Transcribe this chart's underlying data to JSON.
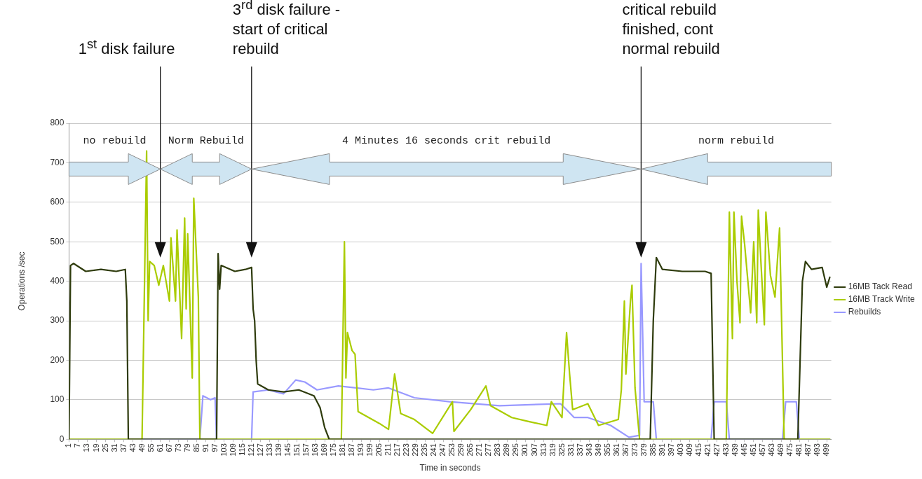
{
  "chart_data": {
    "type": "line",
    "xlabel": "Time in seconds",
    "ylabel": "Operations /sec",
    "xlim": [
      1,
      502
    ],
    "xticks": [
      1,
      7,
      13,
      19,
      25,
      31,
      37,
      43,
      49,
      55,
      61,
      67,
      73,
      79,
      85,
      91,
      97,
      103,
      109,
      115,
      121,
      127,
      133,
      139,
      145,
      151,
      157,
      163,
      169,
      175,
      181,
      187,
      193,
      199,
      205,
      211,
      217,
      223,
      229,
      235,
      241,
      247,
      253,
      259,
      265,
      271,
      277,
      283,
      289,
      295,
      301,
      307,
      313,
      319,
      325,
      331,
      337,
      343,
      349,
      355,
      361,
      367,
      373,
      379,
      385,
      391,
      397,
      403,
      409,
      415,
      421,
      427,
      433,
      439,
      445,
      451,
      457,
      463,
      469,
      475,
      481,
      487,
      493,
      499
    ],
    "ylim": [
      0,
      800
    ],
    "yticks": [
      0,
      100,
      200,
      300,
      400,
      500,
      600,
      700,
      800
    ],
    "grid": "y",
    "legend": "right",
    "marker": "none",
    "line_style": "solid",
    "series": [
      {
        "name": "16MB Tack Read",
        "color": "#2e3b0c",
        "x": [
          1,
          2,
          4,
          12,
          22,
          32,
          38,
          39,
          40,
          98,
          99,
          100,
          101,
          110,
          117,
          121,
          122,
          123,
          124,
          125,
          132,
          142,
          152,
          162,
          166,
          169,
          172,
          383,
          385,
          387,
          391,
          404,
          419,
          423,
          425,
          480,
          483,
          485,
          489,
          496,
          499,
          501
        ],
        "values": [
          0,
          440,
          445,
          425,
          430,
          425,
          430,
          350,
          0,
          0,
          470,
          380,
          440,
          425,
          430,
          435,
          330,
          300,
          200,
          140,
          125,
          120,
          125,
          110,
          80,
          30,
          0,
          0,
          300,
          460,
          430,
          425,
          425,
          420,
          0,
          0,
          400,
          450,
          430,
          435,
          385,
          410
        ]
      },
      {
        "name": "16MB Track Write",
        "color": "#aacc00",
        "x": [
          1,
          49,
          52,
          53,
          54,
          57,
          60,
          63,
          67,
          68,
          71,
          72,
          75,
          77,
          78,
          79,
          82,
          83,
          86,
          87,
          180,
          182,
          183,
          184,
          187,
          189,
          191,
          198,
          205,
          211,
          215,
          219,
          228,
          240,
          253,
          254,
          265,
          275,
          278,
          292,
          303,
          315,
          318,
          325,
          328,
          330,
          332,
          342,
          349,
          362,
          364,
          366,
          367,
          370,
          371,
          373,
          376,
          433,
          435,
          437,
          438,
          440,
          442,
          443,
          445,
          449,
          451,
          453,
          454,
          456,
          458,
          459,
          462,
          465,
          468,
          469,
          471,
          501
        ],
        "values": [
          0,
          0,
          730,
          300,
          450,
          440,
          390,
          440,
          350,
          510,
          350,
          530,
          255,
          560,
          330,
          520,
          155,
          610,
          360,
          0,
          0,
          500,
          155,
          270,
          225,
          215,
          70,
          55,
          40,
          25,
          165,
          65,
          50,
          15,
          95,
          20,
          75,
          135,
          85,
          55,
          45,
          35,
          95,
          55,
          270,
          165,
          75,
          90,
          35,
          50,
          125,
          350,
          165,
          350,
          390,
          130,
          0,
          0,
          575,
          255,
          575,
          400,
          295,
          565,
          495,
          320,
          500,
          295,
          580,
          430,
          290,
          575,
          415,
          360,
          535,
          360,
          0,
          0
        ]
      },
      {
        "name": "Rebuilds",
        "color": "#9999ff",
        "x": [
          1,
          87,
          89,
          94,
          97,
          98,
          121,
          122,
          132,
          142,
          150,
          156,
          164,
          178,
          201,
          211,
          228,
          251,
          284,
          324,
          328,
          333,
          342,
          357,
          369,
          376,
          377,
          379,
          385,
          387,
          423,
          425,
          433,
          435,
          470,
          472,
          479,
          481,
          501
        ],
        "values": [
          0,
          0,
          110,
          100,
          105,
          0,
          0,
          120,
          125,
          115,
          150,
          145,
          125,
          135,
          125,
          130,
          105,
          95,
          85,
          90,
          75,
          55,
          55,
          35,
          5,
          10,
          445,
          95,
          95,
          0,
          0,
          95,
          95,
          0,
          0,
          95,
          95,
          0,
          0
        ]
      }
    ],
    "annotations": [
      "1$^{st}$ disk failure",
      "3$^{rd}$ disk failure - start of critical rebuild",
      "critical rebuild finished, cont normal rebuild",
      "no rebuild",
      "Norm Rebuild",
      "4 Minutes 16 seconds crit rebuild",
      "norm rebuild"
    ]
  }
}
